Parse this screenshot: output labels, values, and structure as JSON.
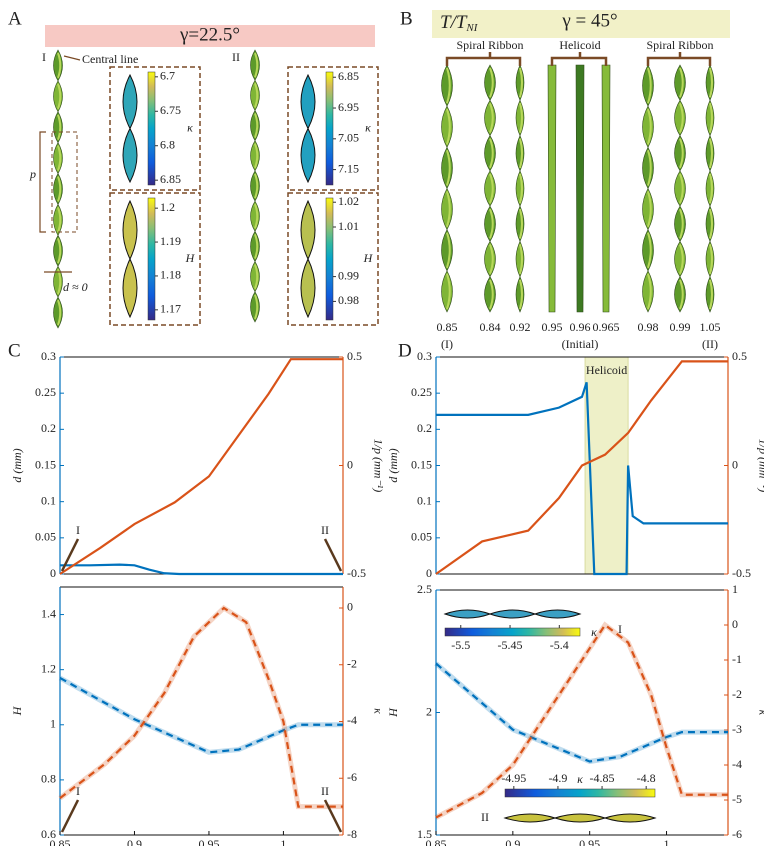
{
  "panel_a": {
    "label": "A",
    "title": "γ=22.5°",
    "roman_1": "I",
    "roman_2": "II",
    "central_line": "Central line",
    "p": "p",
    "d": "d ≈ 0",
    "colorbars": [
      {
        "symbol": "κ",
        "lim": [
          6.693,
          6.857
        ],
        "ticks": [
          6.7,
          6.75,
          6.8,
          6.85
        ]
      },
      {
        "symbol": "H",
        "lim": [
          1.203,
          1.167
        ],
        "ticks": [
          1.2,
          1.19,
          1.18,
          1.17
        ]
      },
      {
        "symbol": "κ",
        "lim": [
          6.833,
          7.2
        ],
        "ticks": [
          6.85,
          6.95,
          7.05,
          7.15
        ]
      },
      {
        "symbol": "H",
        "lim": [
          1.0217,
          0.9725
        ],
        "ticks": [
          1.02,
          1.01,
          0.99,
          0.98
        ]
      }
    ]
  },
  "panel_b": {
    "label": "B",
    "title_t": "T/T",
    "title_sub": "NI",
    "title": "γ = 45°",
    "groups": [
      "Spiral Ribbon",
      "Helicoid",
      "Spiral Ribbon"
    ],
    "temperatures": [
      "0.85",
      "0.84",
      "0.92",
      "0.95",
      "0.96",
      "0.965",
      "0.98",
      "0.99",
      "1.05"
    ],
    "notes": [
      "(I)",
      "(Initial)",
      "(II)"
    ]
  },
  "panel_c": {
    "label": "C"
  },
  "panel_d": {
    "label": "D"
  },
  "chart_data": [
    {
      "type": "line",
      "xlim": [
        0.85,
        1.04
      ],
      "ylim": [
        0,
        0.3
      ],
      "yticks": [
        0,
        0.05,
        0.1,
        0.15,
        0.2,
        0.25,
        0.3
      ],
      "y2lim": [
        -0.5,
        0.5
      ],
      "y2ticks": [
        -0.5,
        0,
        0.5
      ],
      "ylabel": "d (mm)",
      "y2label": "1/p (mm⁻¹)",
      "annotations": [
        "I",
        "II"
      ],
      "series": [
        {
          "color": "#0072bd",
          "linestyle": "solid",
          "x": [
            0.85,
            0.87,
            0.89,
            0.9,
            0.91,
            0.92,
            0.93,
            1.04
          ],
          "values": [
            0.012,
            0.012,
            0.013,
            0.012,
            0.006,
            0.001,
            0,
            0
          ]
        },
        {
          "color": "#d95319",
          "linestyle": "solid",
          "axis": "y2",
          "x": [
            0.85,
            0.877,
            0.9,
            0.927,
            0.95,
            0.97,
            0.99,
            1.005,
            1.04
          ],
          "values": [
            -0.5,
            -0.38,
            -0.27,
            -0.17,
            -0.05,
            0.14,
            0.33,
            0.49,
            0.49
          ]
        }
      ]
    },
    {
      "type": "line",
      "xlim": [
        0.85,
        1.04
      ],
      "ylim": [
        0,
        0.3
      ],
      "yticks": [
        0,
        0.05,
        0.1,
        0.15,
        0.2,
        0.25,
        0.3
      ],
      "y2lim": [
        -0.5,
        0.5
      ],
      "y2ticks": [
        -0.5,
        0,
        0.5
      ],
      "ylabel": "d (mm)",
      "y2label": "1/p (mm⁻¹)",
      "highlight": [
        0.947,
        0.975
      ],
      "highlight_label": "Helicoid",
      "series": [
        {
          "color": "#0072bd",
          "linestyle": "solid",
          "x": [
            0.85,
            0.91,
            0.93,
            0.945,
            0.948,
            0.953,
            0.974,
            0.975,
            0.978,
            0.985,
            1.04
          ],
          "values": [
            0.22,
            0.22,
            0.23,
            0.245,
            0.265,
            0,
            0,
            0.15,
            0.08,
            0.07,
            0.07
          ]
        },
        {
          "color": "#d95319",
          "linestyle": "solid",
          "axis": "y2",
          "x": [
            0.85,
            0.88,
            0.91,
            0.93,
            0.945,
            0.96,
            0.975,
            0.99,
            1.01,
            1.04
          ],
          "values": [
            -0.5,
            -0.35,
            -0.3,
            -0.15,
            0,
            0.05,
            0.15,
            0.3,
            0.48,
            0.48
          ]
        }
      ]
    },
    {
      "type": "line",
      "xlim": [
        0.85,
        1.04
      ],
      "xticks": [
        0.85,
        0.9,
        0.95,
        1
      ],
      "xlabel": "T/T",
      "xlabel_sub": "NI",
      "ylim": [
        0.6,
        1.5
      ],
      "yticks": [
        0.6,
        0.8,
        1,
        1.2,
        1.4
      ],
      "y2lim": [
        -8,
        0.74
      ],
      "y2ticks": [
        -8,
        -6,
        -4,
        -2,
        0
      ],
      "ylabel": "H",
      "y2label": "κ",
      "annotations": [
        "I",
        "II"
      ],
      "series": [
        {
          "color": "#0072bd",
          "linestyle": "dashed",
          "x": [
            0.85,
            0.9,
            0.95,
            0.97,
            1.0,
            1.01,
            1.04
          ],
          "values": [
            1.17,
            1.02,
            0.9,
            0.91,
            0.98,
            1.0,
            1.0
          ]
        },
        {
          "color": "#d95319",
          "linestyle": "dashed",
          "axis": "y2",
          "x": [
            0.85,
            0.88,
            0.9,
            0.92,
            0.94,
            0.96,
            0.975,
            0.99,
            1.0,
            1.01,
            1.04
          ],
          "values": [
            -6.7,
            -5.5,
            -4.5,
            -3,
            -1,
            0,
            -0.5,
            -2.5,
            -4,
            -7,
            -7
          ]
        }
      ]
    },
    {
      "type": "line",
      "xlim": [
        0.85,
        1.04
      ],
      "xticks": [
        0.85,
        0.9,
        0.95,
        1
      ],
      "xlabel": "T/T",
      "xlabel_sub": "NI",
      "ylim": [
        1.5,
        2.5
      ],
      "yticks": [
        1.5,
        2,
        2.5
      ],
      "y2lim": [
        -6,
        1
      ],
      "y2ticks": [
        -6,
        -5,
        -4,
        -3,
        -2,
        -1,
        0,
        1
      ],
      "ylabel": "H",
      "y2label": "κ",
      "insets": [
        {
          "label": "I",
          "symbol": "κ",
          "lim": [
            -5.516,
            -5.379
          ],
          "ticks": [
            -5.5,
            -5.45,
            -5.4
          ]
        },
        {
          "label": "II",
          "symbol": "κ",
          "lim": [
            -4.96,
            -4.79
          ],
          "ticks": [
            -4.95,
            -4.9,
            -4.85,
            -4.8
          ]
        }
      ],
      "series": [
        {
          "color": "#0072bd",
          "linestyle": "dashed",
          "x": [
            0.85,
            0.9,
            0.95,
            0.97,
            1.0,
            1.01,
            1.04
          ],
          "values": [
            2.2,
            1.93,
            1.8,
            1.82,
            1.9,
            1.92,
            1.92
          ]
        },
        {
          "color": "#d95319",
          "linestyle": "dashed",
          "axis": "y2",
          "x": [
            0.85,
            0.88,
            0.9,
            0.93,
            0.96,
            0.975,
            0.99,
            1.0,
            1.01,
            1.04
          ],
          "values": [
            -5.5,
            -4.8,
            -4,
            -2,
            0,
            -0.5,
            -2,
            -3.5,
            -4.85,
            -4.85
          ]
        }
      ]
    }
  ]
}
